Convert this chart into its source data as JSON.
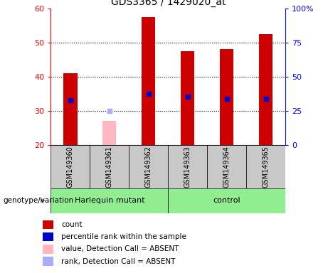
{
  "title": "GDS3365 / 1429020_at",
  "samples": [
    "GSM149360",
    "GSM149361",
    "GSM149362",
    "GSM149363",
    "GSM149364",
    "GSM149365"
  ],
  "absent": [
    false,
    true,
    false,
    false,
    false,
    false
  ],
  "count_values": [
    41.0,
    null,
    57.5,
    47.5,
    48.0,
    52.5
  ],
  "count_absent": [
    null,
    27.0,
    null,
    null,
    null,
    null
  ],
  "rank_values": [
    33.0,
    null,
    35.0,
    34.0,
    33.5,
    33.5
  ],
  "rank_absent": [
    null,
    30.0,
    null,
    null,
    null,
    null
  ],
  "ymin": 20,
  "ymax": 60,
  "yticks_left": [
    20,
    30,
    40,
    50,
    60
  ],
  "yticks_right_vals": [
    0,
    25,
    50,
    75,
    100
  ],
  "yticks_right_labels": [
    "0",
    "25",
    "50",
    "75",
    "100%"
  ],
  "bar_color": "#cc0000",
  "bar_absent_color": "#ffb6c1",
  "rank_color": "#0000cc",
  "rank_absent_color": "#aaaaff",
  "bar_width": 0.35,
  "sample_box_color": "#c8c8c8",
  "group1_color": "#90ee90",
  "group2_color": "#90ee90",
  "group1_label": "Harlequin mutant",
  "group2_label": "control",
  "genotype_label": "genotype/variation",
  "legend_items": [
    {
      "label": "count",
      "color": "#cc0000"
    },
    {
      "label": "percentile rank within the sample",
      "color": "#0000cc"
    },
    {
      "label": "value, Detection Call = ABSENT",
      "color": "#ffb6c1"
    },
    {
      "label": "rank, Detection Call = ABSENT",
      "color": "#aaaaff"
    }
  ],
  "fig_width": 4.61,
  "fig_height": 3.84,
  "dpi": 100
}
